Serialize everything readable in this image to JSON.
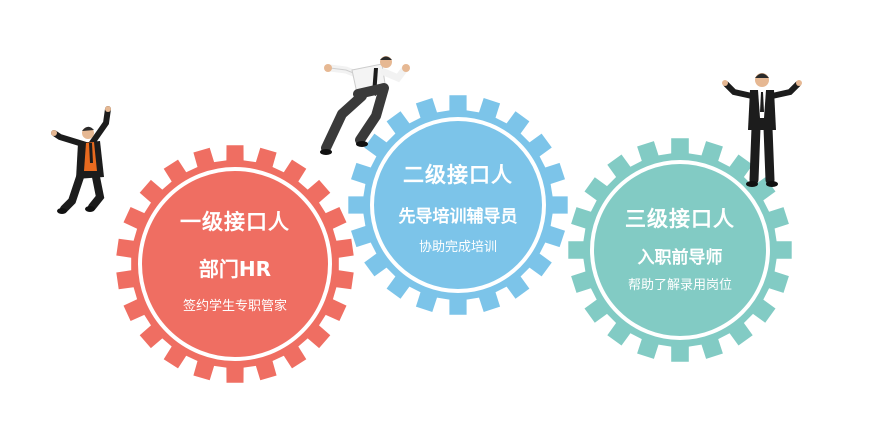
{
  "colors": {
    "red_gear": "#ef6e62",
    "blue_gear": "#7cc4e9",
    "teal_gear": "#82cbc4",
    "ring": "#ffffff"
  },
  "gears": [
    {
      "title": "一级接口人",
      "subtitle": "部门HR",
      "description": "签约学生专职管家"
    },
    {
      "title": "二级接口人",
      "subtitle": "先导培训辅导员",
      "description": "协助完成培训"
    },
    {
      "title": "三级接口人",
      "subtitle": "入职前导师",
      "description": "帮助了解录用岗位"
    }
  ],
  "figures": [
    {
      "icon": "cheering-man-icon"
    },
    {
      "icon": "running-man-icon"
    },
    {
      "icon": "celebrating-man-icon"
    }
  ]
}
